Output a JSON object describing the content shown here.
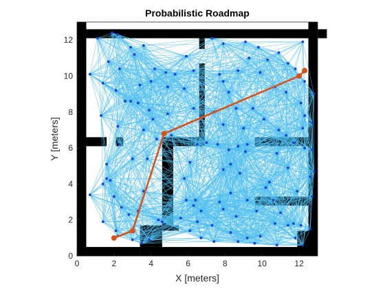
{
  "chart_data": {
    "type": "scatter",
    "title": "Probabilistic Roadmap",
    "xlabel": "X [meters]",
    "ylabel": "Y [meters]",
    "xlim": [
      0,
      13
    ],
    "ylim": [
      0,
      13
    ],
    "xticks": [
      0,
      2,
      4,
      6,
      8,
      10,
      12
    ],
    "yticks": [
      0,
      2,
      4,
      6,
      8,
      10,
      12
    ],
    "grid": false,
    "legend": "none",
    "colors": {
      "wall": "#000000",
      "edge": "#4DBEEE",
      "node": "#1f3fd9",
      "path": "#D95319",
      "axis": "#262626"
    },
    "walls": [
      [
        0.5,
        12.6,
        13.0,
        0.5
      ],
      [
        0.0,
        13.0,
        0.5,
        13.0
      ],
      [
        12.5,
        13.0,
        0.5,
        13.0
      ],
      [
        0.5,
        0.5,
        2.9,
        0.5
      ],
      [
        3.4,
        0.5,
        9.6,
        0.5
      ],
      [
        0.5,
        6.6,
        1.1,
        0.5
      ],
      [
        2.1,
        6.6,
        0.4,
        0.5
      ],
      [
        4.6,
        6.6,
        2.3,
        0.5
      ],
      [
        6.6,
        10.7,
        0.3,
        4.6
      ],
      [
        6.6,
        12.6,
        0.3,
        1.1
      ],
      [
        4.6,
        6.1,
        0.6,
        4.4
      ],
      [
        3.4,
        1.7,
        1.2,
        1.2
      ],
      [
        4.6,
        1.7,
        0.9,
        0.3
      ],
      [
        9.6,
        6.6,
        2.9,
        0.5
      ],
      [
        9.6,
        3.3,
        2.9,
        0.5
      ],
      [
        11.9,
        1.4,
        0.6,
        1.4
      ]
    ],
    "nodes": [
      [
        1.1,
        12.1
      ],
      [
        1.9,
        12.4
      ],
      [
        2.2,
        12.3
      ],
      [
        3.6,
        11.7
      ],
      [
        5.9,
        11.1
      ],
      [
        0.7,
        10.1
      ],
      [
        1.7,
        10.8
      ],
      [
        2.3,
        10.4
      ],
      [
        2.9,
        11.6
      ],
      [
        3.1,
        11.2
      ],
      [
        4.2,
        10.4
      ],
      [
        4.8,
        10.2
      ],
      [
        5.3,
        10.1
      ],
      [
        1.4,
        9.6
      ],
      [
        2.1,
        9.2
      ],
      [
        3.4,
        9.5
      ],
      [
        4.0,
        9.7
      ],
      [
        4.9,
        9.4
      ],
      [
        2.6,
        8.6
      ],
      [
        2.9,
        8.6
      ],
      [
        3.3,
        8.5
      ],
      [
        3.9,
        8.1
      ],
      [
        1.3,
        7.8
      ],
      [
        2.2,
        7.2
      ],
      [
        3.6,
        7.0
      ],
      [
        4.3,
        6.5
      ],
      [
        4.9,
        7.9
      ],
      [
        6.3,
        8.2
      ],
      [
        7.3,
        12.1
      ],
      [
        7.9,
        11.8
      ],
      [
        9.1,
        11.9
      ],
      [
        9.3,
        11.0
      ],
      [
        10.3,
        10.9
      ],
      [
        11.4,
        10.7
      ],
      [
        11.8,
        10.4
      ],
      [
        7.7,
        10.1
      ],
      [
        8.7,
        10.3
      ],
      [
        9.9,
        10.2
      ],
      [
        10.7,
        9.4
      ],
      [
        11.3,
        9.1
      ],
      [
        12.3,
        9.7
      ],
      [
        12.8,
        9.0
      ],
      [
        12.3,
        7.8
      ],
      [
        12.2,
        7.1
      ],
      [
        12.7,
        7.4
      ],
      [
        7.9,
        9.7
      ],
      [
        8.2,
        9.1
      ],
      [
        8.6,
        8.2
      ],
      [
        9.5,
        8.2
      ],
      [
        7.4,
        8.0
      ],
      [
        10.1,
        7.6
      ],
      [
        10.9,
        7.0
      ],
      [
        11.3,
        6.7
      ],
      [
        12.3,
        6.0
      ],
      [
        12.7,
        5.9
      ],
      [
        10.8,
        5.7
      ],
      [
        11.4,
        4.9
      ],
      [
        12.8,
        4.7
      ],
      [
        12.6,
        4.4
      ],
      [
        10.4,
        4.1
      ],
      [
        10.2,
        3.8
      ],
      [
        11.9,
        3.6
      ],
      [
        5.9,
        3.1
      ],
      [
        6.4,
        3.1
      ],
      [
        6.3,
        2.8
      ],
      [
        6.7,
        2.5
      ],
      [
        5.6,
        2.1
      ],
      [
        7.7,
        3.0
      ],
      [
        8.3,
        3.5
      ],
      [
        9.2,
        3.1
      ],
      [
        8.6,
        2.2
      ],
      [
        7.9,
        2.6
      ],
      [
        7.3,
        1.7
      ],
      [
        6.7,
        1.0
      ],
      [
        8.3,
        1.3
      ],
      [
        9.2,
        1.0
      ],
      [
        9.9,
        1.1
      ],
      [
        10.7,
        1.8
      ],
      [
        11.4,
        1.7
      ],
      [
        11.7,
        1.8
      ],
      [
        12.1,
        1.7
      ],
      [
        12.6,
        1.5
      ],
      [
        11.8,
        1.0
      ],
      [
        12.2,
        0.6
      ],
      [
        10.8,
        0.6
      ],
      [
        9.6,
        0.7
      ],
      [
        8.7,
        0.8
      ],
      [
        7.4,
        0.8
      ],
      [
        6.5,
        1.9
      ],
      [
        6.1,
        1.4
      ],
      [
        7.0,
        6.3
      ],
      [
        7.6,
        6.2
      ],
      [
        8.2,
        5.9
      ],
      [
        8.7,
        6.1
      ],
      [
        9.2,
        6.2
      ],
      [
        6.5,
        6.2
      ],
      [
        6.1,
        5.2
      ],
      [
        7.9,
        4.8
      ],
      [
        8.3,
        5.1
      ],
      [
        9.1,
        5.8
      ],
      [
        8.8,
        4.6
      ],
      [
        5.8,
        4.3
      ],
      [
        0.7,
        3.4
      ],
      [
        1.4,
        4.0
      ],
      [
        1.6,
        4.3
      ],
      [
        1.8,
        4.2
      ],
      [
        2.0,
        3.3
      ],
      [
        2.4,
        2.7
      ],
      [
        1.4,
        1.9
      ],
      [
        2.2,
        1.1
      ],
      [
        3.0,
        0.9
      ],
      [
        2.1,
        1.4
      ],
      [
        2.8,
        2.3
      ],
      [
        3.3,
        2.5
      ],
      [
        4.4,
        2.0
      ],
      [
        4.6,
        1.9
      ],
      [
        3.5,
        0.7
      ],
      [
        3.9,
        0.9
      ],
      [
        3.6,
        3.6
      ],
      [
        1.6,
        5.1
      ],
      [
        3.0,
        5.4
      ],
      [
        3.8,
        5.4
      ],
      [
        2.3,
        6.2
      ],
      [
        4.1,
        7.6
      ],
      [
        5.8,
        9.3
      ],
      [
        6.3,
        10.3
      ],
      [
        9.8,
        11.6
      ],
      [
        10.9,
        11.3
      ],
      [
        12.2,
        11.9
      ],
      [
        5.1,
        6.7
      ],
      [
        7.9,
        7.3
      ],
      [
        9.0,
        7.1
      ],
      [
        12.1,
        8.5
      ],
      [
        11.7,
        6.3
      ],
      [
        12.7,
        3.3
      ],
      [
        10.6,
        3.1
      ],
      [
        9.7,
        2.5
      ],
      [
        11.0,
        2.4
      ]
    ],
    "path": [
      [
        2.0,
        1.0
      ],
      [
        3.0,
        1.4
      ],
      [
        4.7,
        6.8
      ],
      [
        12.0,
        10.0
      ],
      [
        12.3,
        10.3
      ]
    ]
  }
}
